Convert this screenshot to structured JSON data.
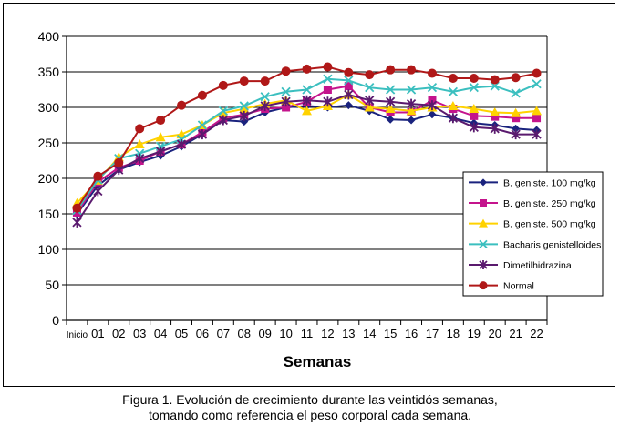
{
  "chart_data": {
    "type": "line",
    "xlabel": "Semanas",
    "ylabel": "",
    "ylim": [
      0,
      400
    ],
    "yticks": [
      0,
      50,
      100,
      150,
      200,
      250,
      300,
      350,
      400
    ],
    "categories": [
      "Inicio",
      "01",
      "02",
      "03",
      "04",
      "05",
      "06",
      "07",
      "08",
      "09",
      "10",
      "11",
      "12",
      "13",
      "14",
      "15",
      "16",
      "17",
      "18",
      "19",
      "20",
      "21",
      "22"
    ],
    "grid": "horizontal",
    "legend_position": "right",
    "series": [
      {
        "name": "B. geniste. 100 mg/kg",
        "color": "#1a237e",
        "marker": "diamond",
        "values": [
          150,
          190,
          212,
          223,
          232,
          245,
          262,
          282,
          280,
          293,
          300,
          302,
          300,
          303,
          295,
          283,
          282,
          290,
          285,
          278,
          275,
          270,
          268
        ]
      },
      {
        "name": "B. geniste. 250 mg/kg",
        "color": "#c4148c",
        "marker": "square",
        "values": [
          152,
          195,
          215,
          225,
          238,
          248,
          265,
          285,
          290,
          298,
          300,
          308,
          325,
          330,
          300,
          293,
          293,
          310,
          298,
          288,
          287,
          285,
          285
        ]
      },
      {
        "name": "B. geniste. 500 mg/kg",
        "color": "#ffd200",
        "marker": "triangle",
        "values": [
          165,
          197,
          230,
          248,
          258,
          262,
          275,
          292,
          298,
          305,
          310,
          295,
          302,
          318,
          300,
          298,
          295,
          300,
          302,
          298,
          293,
          292,
          295
        ]
      },
      {
        "name": "Bacharis genistelloides",
        "color": "#3bbfbf",
        "marker": "x",
        "values": [
          155,
          198,
          228,
          235,
          245,
          255,
          275,
          295,
          302,
          315,
          322,
          325,
          340,
          338,
          328,
          325,
          325,
          328,
          322,
          328,
          330,
          320,
          333
        ]
      },
      {
        "name": "Dimetilhidrazina",
        "color": "#5a1a6e",
        "marker": "star",
        "values": [
          138,
          182,
          212,
          228,
          238,
          248,
          262,
          282,
          288,
          302,
          308,
          310,
          308,
          318,
          310,
          308,
          305,
          303,
          285,
          272,
          270,
          262,
          262
        ]
      },
      {
        "name": "Normal",
        "color": "#b01818",
        "marker": "circle",
        "values": [
          158,
          203,
          222,
          270,
          282,
          303,
          317,
          331,
          337,
          337,
          351,
          354,
          357,
          349,
          346,
          353,
          353,
          348,
          341,
          341,
          339,
          342,
          348
        ]
      }
    ]
  },
  "caption": {
    "line1": "Figura 1. Evolución de crecimiento durante las veintidós semanas,",
    "line2": "tomando como referencia el peso corporal cada semana."
  }
}
